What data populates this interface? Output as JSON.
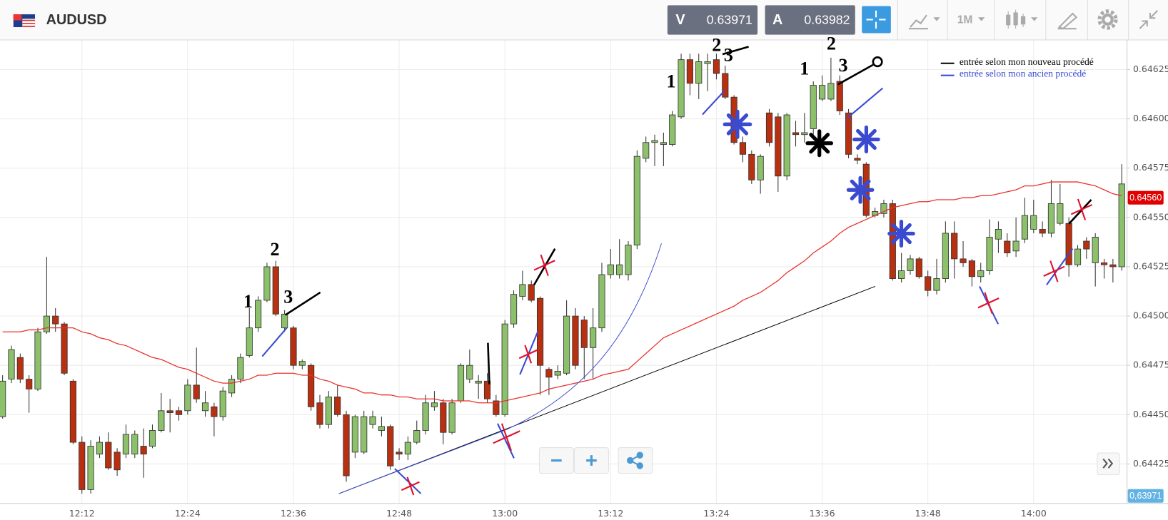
{
  "header": {
    "symbol": "AUDUSD",
    "bid": {
      "letter": "V",
      "price": "0.63971"
    },
    "ask": {
      "letter": "A",
      "price": "0.63982"
    },
    "timeframe": "1M"
  },
  "footer": {
    "price_tag": "0,63971"
  },
  "chart_data": {
    "type": "candlestick",
    "categories": [
      null,
      null,
      null,
      null,
      null,
      null,
      null,
      null,
      null,
      "12:12",
      null,
      null,
      null,
      null,
      null,
      null,
      null,
      null,
      null,
      null,
      null,
      "12:24",
      null,
      null,
      null,
      null,
      null,
      null,
      null,
      null,
      null,
      null,
      null,
      "12:36",
      null,
      null,
      null,
      null,
      null,
      null,
      null,
      null,
      null,
      null,
      null,
      "12:48",
      null,
      null,
      null,
      null,
      null,
      null,
      null,
      null,
      null,
      null,
      null,
      "13:00",
      null,
      null,
      null,
      null,
      null,
      null,
      null,
      null,
      null,
      null,
      null,
      "13:12",
      null,
      null,
      null,
      null,
      null,
      null,
      null,
      null,
      null,
      null,
      null,
      "13:24",
      null,
      null,
      null,
      null,
      null,
      null,
      null,
      null,
      null,
      null,
      null,
      "13:36",
      null,
      null,
      null,
      null,
      null,
      null,
      null,
      null,
      null,
      null,
      null,
      "13:48",
      null,
      null,
      null,
      null,
      null,
      null,
      null,
      null,
      null,
      null,
      null,
      "14:00",
      null,
      null,
      null,
      null,
      null,
      null,
      null,
      null,
      null,
      null
    ],
    "open": [
      0.64449,
      0.64468,
      0.64479,
      0.64468,
      0.64463,
      0.64492,
      0.645,
      0.64496,
      0.64467,
      0.64436,
      0.64412,
      0.6443,
      0.64436,
      0.64431,
      0.6443,
      0.6443,
      0.64434,
      0.64434,
      0.64442,
      0.64452,
      0.64452,
      0.64452,
      0.64465,
      0.64452,
      0.64454,
      0.64449,
      0.64461,
      0.64468,
      0.6448,
      0.64494,
      0.64508,
      0.64525,
      0.64494,
      0.64494,
      0.64475,
      0.64475,
      0.64456,
      0.64445,
      0.64459,
      0.6445,
      0.64431,
      0.64431,
      0.64445,
      0.64442,
      0.64444,
      0.64431,
      0.6443,
      0.64436,
      0.64442,
      0.64454,
      0.64456,
      0.64441,
      0.64457,
      0.64468,
      0.64466,
      0.64467,
      0.64457,
      0.6445,
      0.64496,
      0.6451,
      0.64516,
      0.64509,
      0.64473,
      0.6447,
      0.64471,
      0.645,
      0.64498,
      0.64484,
      0.64494,
      0.64521,
      0.64521,
      0.64521,
      0.64536,
      0.6458,
      0.64588,
      0.64587,
      0.64587,
      0.64601,
      0.6463,
      0.64618,
      0.64628,
      0.6463,
      0.64623,
      0.64611,
      0.64588,
      0.64582,
      0.64569,
      0.64603,
      0.64601,
      0.64571,
      0.64593,
      0.64592,
      0.64595,
      0.6461,
      0.6461,
      0.64619,
      0.64603,
      0.6458,
      0.64577,
      0.64551,
      0.64552,
      0.64557,
      0.64519,
      0.64523,
      0.64529,
      0.6452,
      0.64513,
      0.64519,
      0.64542,
      0.64529,
      0.64528,
      0.6452,
      0.64523,
      0.64539,
      0.64538,
      0.64533,
      0.64539,
      0.64544,
      0.64544,
      0.64542,
      0.64547,
      0.64547,
      0.64526,
      0.64538,
      0.64527,
      0.64527,
      0.64526,
      0.64525
    ],
    "high": [
      0.6447,
      0.64485,
      0.64481,
      0.6447,
      0.64494,
      0.6453,
      0.64504,
      0.64497,
      0.64468,
      0.64439,
      0.64437,
      0.64439,
      0.64441,
      0.64433,
      0.64445,
      0.64442,
      0.64443,
      0.64445,
      0.64461,
      0.64458,
      0.64454,
      0.64468,
      0.64484,
      0.64462,
      0.64456,
      0.64464,
      0.6447,
      0.64481,
      0.64504,
      0.6451,
      0.64527,
      0.64528,
      0.64503,
      0.64495,
      0.64478,
      0.64476,
      0.6446,
      0.64462,
      0.64465,
      0.64452,
      0.6445,
      0.64452,
      0.64452,
      0.64449,
      0.64445,
      0.64433,
      0.64439,
      0.64447,
      0.6446,
      0.64462,
      0.64458,
      0.64458,
      0.64476,
      0.64483,
      0.6447,
      0.64471,
      0.6446,
      0.64498,
      0.64513,
      0.64523,
      0.64518,
      0.6451,
      0.64474,
      0.64475,
      0.64508,
      0.64504,
      0.645,
      0.64504,
      0.64527,
      0.64534,
      0.64539,
      0.64538,
      0.64584,
      0.64591,
      0.64592,
      0.64593,
      0.64604,
      0.64633,
      0.64633,
      0.64633,
      0.64633,
      0.64633,
      0.64627,
      0.64612,
      0.64591,
      0.64584,
      0.64582,
      0.64605,
      0.64603,
      0.64603,
      0.64599,
      0.64603,
      0.64619,
      0.64622,
      0.64631,
      0.64622,
      0.64605,
      0.64582,
      0.64578,
      0.64555,
      0.64559,
      0.64559,
      0.64532,
      0.64531,
      0.6453,
      0.64523,
      0.64529,
      0.64548,
      0.64548,
      0.64538,
      0.64529,
      0.64527,
      0.64549,
      0.64548,
      0.64542,
      0.6455,
      0.6456,
      0.64559,
      0.64548,
      0.64569,
      0.64567,
      0.6455,
      0.64536,
      0.6454,
      0.64542,
      0.64529,
      0.64529,
      0.64577
    ],
    "low": [
      0.64448,
      0.64466,
      0.64466,
      0.64451,
      0.64462,
      0.64491,
      0.64492,
      0.6447,
      0.64435,
      0.6441,
      0.6441,
      0.64428,
      0.64422,
      0.64419,
      0.64428,
      0.64428,
      0.64418,
      0.64433,
      0.64441,
      0.64441,
      0.64447,
      0.6445,
      0.64456,
      0.64449,
      0.64439,
      0.64447,
      0.64459,
      0.64466,
      0.64479,
      0.64492,
      0.64507,
      0.645,
      0.64492,
      0.64473,
      0.64473,
      0.64452,
      0.64443,
      0.64443,
      0.64449,
      0.64416,
      0.64428,
      0.6443,
      0.64443,
      0.64439,
      0.64422,
      0.64427,
      0.64427,
      0.64435,
      0.6444,
      0.64452,
      0.64435,
      0.6444,
      0.64456,
      0.64466,
      0.64458,
      0.64456,
      0.64449,
      0.64449,
      0.64494,
      0.64508,
      0.64507,
      0.6446,
      0.6446,
      0.64468,
      0.6447,
      0.64473,
      0.64468,
      0.64468,
      0.64492,
      0.64519,
      0.64519,
      0.64518,
      0.64534,
      0.64578,
      0.64576,
      0.64576,
      0.64586,
      0.646,
      0.64612,
      0.6461,
      0.64614,
      0.6462,
      0.6461,
      0.64587,
      0.64578,
      0.64567,
      0.64562,
      0.64586,
      0.64563,
      0.64569,
      0.64586,
      0.64588,
      0.64592,
      0.64609,
      0.64609,
      0.64602,
      0.6458,
      0.64577,
      0.6455,
      0.6455,
      0.6455,
      0.64518,
      0.64517,
      0.64521,
      0.64519,
      0.6451,
      0.64511,
      0.64517,
      0.64519,
      0.64525,
      0.64515,
      0.64517,
      0.64521,
      0.64532,
      0.6453,
      0.6453,
      0.64537,
      0.64542,
      0.6454,
      0.6454,
      0.64546,
      0.6452,
      0.64525,
      0.64529,
      0.64515,
      0.64519,
      0.64517,
      0.64523
    ],
    "close": [
      0.64467,
      0.64483,
      0.64468,
      0.64463,
      0.64492,
      0.645,
      0.64496,
      0.64471,
      0.64436,
      0.64412,
      0.64434,
      0.64436,
      0.64423,
      0.64422,
      0.6444,
      0.6444,
      0.6443,
      0.64442,
      0.64452,
      0.64451,
      0.6445,
      0.64465,
      0.64458,
      0.64456,
      0.64449,
      0.64462,
      0.64468,
      0.64479,
      0.64494,
      0.64508,
      0.64525,
      0.64501,
      0.64501,
      0.64475,
      0.64477,
      0.64454,
      0.64445,
      0.64459,
      0.6445,
      0.64419,
      0.64449,
      0.64449,
      0.64449,
      0.64444,
      0.64424,
      0.6443,
      0.64436,
      0.64442,
      0.64456,
      0.64456,
      0.64441,
      0.64456,
      0.64475,
      0.64475,
      0.64467,
      0.64458,
      0.6445,
      0.64496,
      0.64511,
      0.64516,
      0.64508,
      0.64475,
      0.64469,
      0.64472,
      0.645,
      0.64475,
      0.64484,
      0.64494,
      0.64521,
      0.64526,
      0.64526,
      0.64536,
      0.64581,
      0.64588,
      0.64589,
      0.64588,
      0.64602,
      0.6463,
      0.64618,
      0.64629,
      0.64629,
      0.64623,
      0.64611,
      0.64588,
      0.64582,
      0.64569,
      0.64581,
      0.64588,
      0.64571,
      0.64602,
      0.64592,
      0.64593,
      0.64617,
      0.64617,
      0.64618,
      0.64604,
      0.64582,
      0.64579,
      0.64551,
      0.64553,
      0.64557,
      0.64519,
      0.64523,
      0.64529,
      0.6452,
      0.64513,
      0.64519,
      0.64542,
      0.64529,
      0.64527,
      0.6452,
      0.64523,
      0.6454,
      0.64544,
      0.64532,
      0.64538,
      0.64551,
      0.64551,
      0.64542,
      0.64557,
      0.64557,
      0.64526,
      0.64534,
      0.64534,
      0.6454,
      0.64526,
      0.64525,
      0.64567
    ],
    "up_color": "#8cc06a",
    "down_color": "#b8300f",
    "moving_average": {
      "color": "#e8302a",
      "values": [
        0.64492,
        0.64492,
        0.64492,
        0.64493,
        0.64493,
        0.64494,
        0.64494,
        0.64494,
        0.64494,
        0.64492,
        0.64491,
        0.64489,
        0.64488,
        0.64486,
        0.64485,
        0.64483,
        0.64481,
        0.64479,
        0.64478,
        0.64476,
        0.64474,
        0.64473,
        0.64471,
        0.64469,
        0.64467,
        0.64466,
        0.64466,
        0.64467,
        0.64468,
        0.6447,
        0.6447,
        0.64471,
        0.64471,
        0.64471,
        0.6447,
        0.6447,
        0.64468,
        0.64467,
        0.64465,
        0.64464,
        0.64463,
        0.64461,
        0.64461,
        0.6446,
        0.6446,
        0.64459,
        0.64459,
        0.64458,
        0.64458,
        0.64458,
        0.64457,
        0.64457,
        0.64457,
        0.64457,
        0.64456,
        0.64456,
        0.64456,
        0.64457,
        0.64458,
        0.64459,
        0.6446,
        0.64461,
        0.64463,
        0.64464,
        0.64465,
        0.64466,
        0.64467,
        0.64468,
        0.6447,
        0.64471,
        0.64472,
        0.64473,
        0.64477,
        0.64481,
        0.64485,
        0.64489,
        0.64491,
        0.64493,
        0.64495,
        0.64497,
        0.64499,
        0.64501,
        0.64503,
        0.64505,
        0.64508,
        0.6451,
        0.64512,
        0.64515,
        0.64518,
        0.64522,
        0.64525,
        0.64528,
        0.64532,
        0.64535,
        0.64538,
        0.64542,
        0.64545,
        0.64547,
        0.64549,
        0.64551,
        0.64553,
        0.64555,
        0.64556,
        0.64557,
        0.64558,
        0.64558,
        0.64559,
        0.64559,
        0.64559,
        0.6456,
        0.6456,
        0.64561,
        0.64561,
        0.64562,
        0.64563,
        0.64564,
        0.64566,
        0.64566,
        0.64567,
        0.64568,
        0.64568,
        0.64568,
        0.64568,
        0.64567,
        0.64566,
        0.64564,
        0.64562,
        0.64561
      ]
    },
    "ylim": [
      0.64405,
      0.6464
    ],
    "yticks": [
      0.64425,
      {
        "value": 0.6445,
        "label": "0.64450"
      },
      0.64475,
      {
        "value": 0.645,
        "label": "0.64500"
      },
      0.64525,
      {
        "value": 0.6455,
        "label": "0.64550"
      },
      0.64575,
      {
        "value": 0.646,
        "label": "0.64600"
      },
      0.64625
    ],
    "grid": true,
    "current_price": {
      "value": 0.6456,
      "label": "0.64560",
      "color": "#e00000"
    },
    "legend": [
      {
        "label": "entrée selon mon nouveau procédé",
        "color": "#000000"
      },
      {
        "label": "entrée selon mon ancien procédé",
        "color": "#3a4bd0"
      }
    ],
    "annotations": [
      "1",
      "2",
      "3",
      "1",
      "2",
      "3",
      "1",
      "2",
      "3"
    ]
  }
}
